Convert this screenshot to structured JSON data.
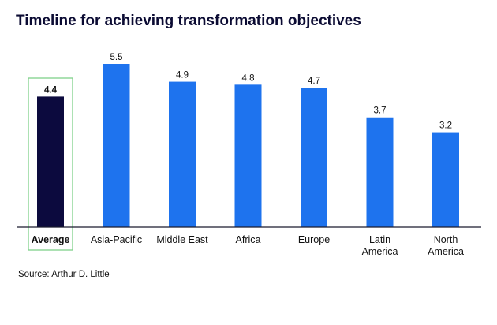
{
  "title": "Timeline for achieving transformation objectives",
  "source": "Source: Arthur D. Little",
  "chart_data": {
    "type": "bar",
    "categories": [
      [
        "Average"
      ],
      [
        "Asia-Pacific"
      ],
      [
        "Middle East"
      ],
      [
        "Africa"
      ],
      [
        "Europe"
      ],
      [
        "Latin",
        "America"
      ],
      [
        "North",
        "America"
      ]
    ],
    "values": [
      4.4,
      5.5,
      4.9,
      4.8,
      4.7,
      3.7,
      3.2
    ],
    "value_labels": [
      "4.4",
      "5.5",
      "4.9",
      "4.8",
      "4.7",
      "3.7",
      "3.2"
    ],
    "highlight_index": 0,
    "ylim": [
      0,
      5.5
    ],
    "colors": {
      "bar": "#1e73ee",
      "highlight": "#0c0a3e",
      "highlight_box": "#7fd18a",
      "axis": "#1a1a2e"
    }
  }
}
